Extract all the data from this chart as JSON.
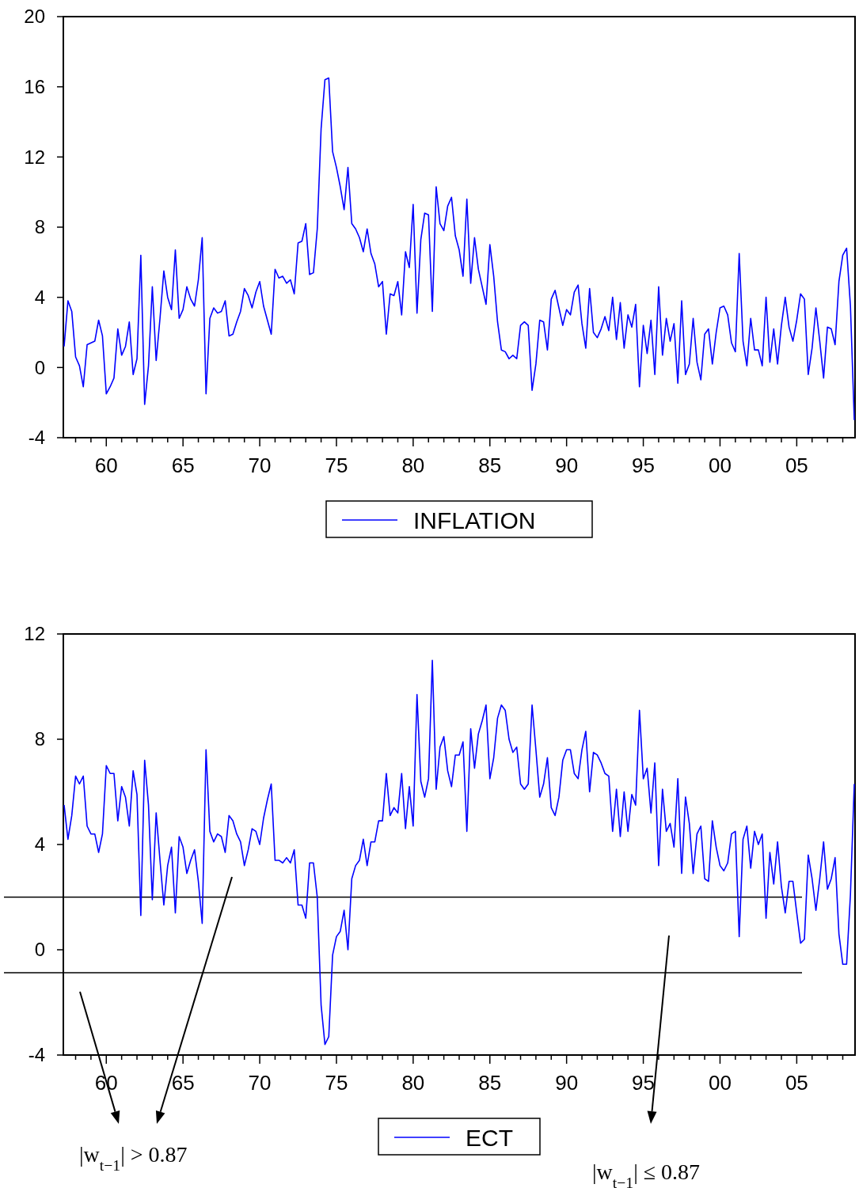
{
  "chart_data": [
    {
      "type": "line",
      "legend": "bottom",
      "xlim": [
        1957.2,
        2008.8
      ],
      "ylim": [
        -4,
        20
      ],
      "yticks": [
        -4,
        0,
        4,
        8,
        12,
        16,
        20
      ],
      "xticks": [
        {
          "value": 1958,
          "label": null
        },
        {
          "value": 1959,
          "label": null
        },
        {
          "value": 1960,
          "label": "60"
        },
        {
          "value": 1961,
          "label": null
        },
        {
          "value": 1962,
          "label": null
        },
        {
          "value": 1963,
          "label": null
        },
        {
          "value": 1964,
          "label": null
        },
        {
          "value": 1965,
          "label": "65"
        },
        {
          "value": 1966,
          "label": null
        },
        {
          "value": 1967,
          "label": null
        },
        {
          "value": 1968,
          "label": null
        },
        {
          "value": 1969,
          "label": null
        },
        {
          "value": 1970,
          "label": "70"
        },
        {
          "value": 1971,
          "label": null
        },
        {
          "value": 1972,
          "label": null
        },
        {
          "value": 1973,
          "label": null
        },
        {
          "value": 1974,
          "label": null
        },
        {
          "value": 1975,
          "label": "75"
        },
        {
          "value": 1976,
          "label": null
        },
        {
          "value": 1977,
          "label": null
        },
        {
          "value": 1978,
          "label": null
        },
        {
          "value": 1979,
          "label": null
        },
        {
          "value": 1980,
          "label": "80"
        },
        {
          "value": 1981,
          "label": null
        },
        {
          "value": 1982,
          "label": null
        },
        {
          "value": 1983,
          "label": null
        },
        {
          "value": 1984,
          "label": null
        },
        {
          "value": 1985,
          "label": "85"
        },
        {
          "value": 1986,
          "label": null
        },
        {
          "value": 1987,
          "label": null
        },
        {
          "value": 1988,
          "label": null
        },
        {
          "value": 1989,
          "label": null
        },
        {
          "value": 1990,
          "label": "90"
        },
        {
          "value": 1991,
          "label": null
        },
        {
          "value": 1992,
          "label": null
        },
        {
          "value": 1993,
          "label": null
        },
        {
          "value": 1994,
          "label": null
        },
        {
          "value": 1995,
          "label": "95"
        },
        {
          "value": 1996,
          "label": null
        },
        {
          "value": 1997,
          "label": null
        },
        {
          "value": 1998,
          "label": null
        },
        {
          "value": 1999,
          "label": null
        },
        {
          "value": 2000,
          "label": "00"
        },
        {
          "value": 2001,
          "label": null
        },
        {
          "value": 2002,
          "label": null
        },
        {
          "value": 2003,
          "label": null
        },
        {
          "value": 2004,
          "label": null
        },
        {
          "value": 2005,
          "label": "05"
        },
        {
          "value": 2006,
          "label": null
        },
        {
          "value": 2007,
          "label": null
        },
        {
          "value": 2008,
          "label": null
        }
      ],
      "x": [
        1957.25,
        1957.5,
        1957.75,
        1958,
        1958.25,
        1958.5,
        1958.75,
        1959,
        1959.25,
        1959.5,
        1959.75,
        1960,
        1960.25,
        1960.5,
        1960.75,
        1961,
        1961.25,
        1961.5,
        1961.75,
        1962,
        1962.25,
        1962.5,
        1962.75,
        1963,
        1963.25,
        1963.5,
        1963.75,
        1964,
        1964.25,
        1964.5,
        1964.75,
        1965,
        1965.25,
        1965.5,
        1965.75,
        1966,
        1966.25,
        1966.5,
        1966.75,
        1967,
        1967.25,
        1967.5,
        1967.75,
        1968,
        1968.25,
        1968.5,
        1968.75,
        1969,
        1969.25,
        1969.5,
        1969.75,
        1970,
        1970.25,
        1970.5,
        1970.75,
        1971,
        1971.25,
        1971.5,
        1971.75,
        1972,
        1972.25,
        1972.5,
        1972.75,
        1973,
        1973.25,
        1973.5,
        1973.75,
        1974,
        1974.25,
        1974.5,
        1974.75,
        1975,
        1975.25,
        1975.5,
        1975.75,
        1976,
        1976.25,
        1976.5,
        1976.75,
        1977,
        1977.25,
        1977.5,
        1977.75,
        1978,
        1978.25,
        1978.5,
        1978.75,
        1979,
        1979.25,
        1979.5,
        1979.75,
        1980,
        1980.25,
        1980.5,
        1980.75,
        1981,
        1981.25,
        1981.5,
        1981.75,
        1982,
        1982.25,
        1982.5,
        1982.75,
        1983,
        1983.25,
        1983.5,
        1983.75,
        1984,
        1984.25,
        1984.5,
        1984.75,
        1985,
        1985.25,
        1985.5,
        1985.75,
        1986,
        1986.25,
        1986.5,
        1986.75,
        1987,
        1987.25,
        1987.5,
        1987.75,
        1988,
        1988.25,
        1988.5,
        1988.75,
        1989,
        1989.25,
        1989.5,
        1989.75,
        1990,
        1990.25,
        1990.5,
        1990.75,
        1991,
        1991.25,
        1991.5,
        1991.75,
        1992,
        1992.25,
        1992.5,
        1992.75,
        1993,
        1993.25,
        1993.5,
        1993.75,
        1994,
        1994.25,
        1994.5,
        1994.75,
        1995,
        1995.25,
        1995.5,
        1995.75,
        1996,
        1996.25,
        1996.5,
        1996.75,
        1997,
        1997.25,
        1997.5,
        1997.75,
        1998,
        1998.25,
        1998.5,
        1998.75,
        1999,
        1999.25,
        1999.5,
        1999.75,
        2000,
        2000.25,
        2000.5,
        2000.75,
        2001,
        2001.25,
        2001.5,
        2001.75,
        2002,
        2002.25,
        2002.5,
        2002.75,
        2003,
        2003.25,
        2003.5,
        2003.75,
        2004,
        2004.25,
        2004.5,
        2004.75,
        2005,
        2005.25,
        2005.5,
        2005.75,
        2006,
        2006.25,
        2006.5,
        2006.75,
        2007,
        2007.25,
        2007.5,
        2007.75,
        2008,
        2008.25,
        2008.5,
        2008.75
      ],
      "series": [
        {
          "name": "INFLATION",
          "color": "#0000ff",
          "values": [
            1.2,
            3.8,
            3.2,
            0.6,
            0.1,
            -1.1,
            1.3,
            1.4,
            1.5,
            2.7,
            1.8,
            -1.5,
            -1.1,
            -0.6,
            2.2,
            0.7,
            1.2,
            2.6,
            -0.4,
            0.5,
            6.4,
            -2.1,
            0.1,
            4.6,
            0.4,
            2.8,
            5.5,
            4.0,
            3.3,
            6.7,
            2.8,
            3.3,
            4.6,
            3.9,
            3.5,
            5.0,
            7.4,
            -1.5,
            2.8,
            3.4,
            3.1,
            3.2,
            3.8,
            1.8,
            1.9,
            2.6,
            3.2,
            4.5,
            4.1,
            3.4,
            4.3,
            4.9,
            3.5,
            2.7,
            1.9,
            5.6,
            5.1,
            5.2,
            4.8,
            5.0,
            4.2,
            7.1,
            7.2,
            8.2,
            5.3,
            5.4,
            7.9,
            13.6,
            16.4,
            16.5,
            12.3,
            11.4,
            10.3,
            9.0,
            11.4,
            8.2,
            7.9,
            7.4,
            6.6,
            7.9,
            6.5,
            5.9,
            4.6,
            4.9,
            1.9,
            4.2,
            4.1,
            4.9,
            3.0,
            6.6,
            5.7,
            9.3,
            3.1,
            7.3,
            8.8,
            8.7,
            3.2,
            10.3,
            8.2,
            7.8,
            9.2,
            9.7,
            7.5,
            6.7,
            5.2,
            9.6,
            4.8,
            7.4,
            5.6,
            4.6,
            3.6,
            7.0,
            5.2,
            2.6,
            1.0,
            0.9,
            0.5,
            0.7,
            0.5,
            2.4,
            2.6,
            2.4,
            -1.3,
            0.2,
            2.7,
            2.6,
            1.0,
            3.9,
            4.4,
            3.4,
            2.4,
            3.3,
            3.0,
            4.3,
            4.7,
            2.5,
            1.1,
            4.5,
            2.0,
            1.7,
            2.2,
            2.9,
            2.1,
            4.0,
            1.6,
            3.7,
            1.1,
            3.0,
            2.3,
            3.6,
            -1.1,
            2.4,
            0.8,
            2.7,
            -0.4,
            4.6,
            0.7,
            2.8,
            1.5,
            2.5,
            -0.9,
            3.8,
            -0.4,
            0.2,
            2.8,
            0.3,
            -0.7,
            1.9,
            2.2,
            0.2,
            2.0,
            3.4,
            3.5,
            3.0,
            1.4,
            0.9,
            6.5,
            1.5,
            0.1,
            2.8,
            1.0,
            1.0,
            0.1,
            4.0,
            0.3,
            2.2,
            0.2,
            2.4,
            4.0,
            2.3,
            1.5,
            2.7,
            4.2,
            3.9,
            -0.4,
            1.1,
            3.4,
            1.5,
            -0.6,
            2.3,
            2.2,
            1.3,
            4.9,
            6.4,
            6.8,
            3.5,
            -3.0
          ]
        }
      ]
    },
    {
      "type": "line",
      "legend": "bottom",
      "xlim": [
        1957.2,
        2008.8
      ],
      "ylim": [
        -4,
        12
      ],
      "yticks": [
        -4,
        0,
        4,
        8,
        12
      ],
      "xticks": [
        {
          "value": 1958,
          "label": null
        },
        {
          "value": 1959,
          "label": null
        },
        {
          "value": 1960,
          "label": "60"
        },
        {
          "value": 1961,
          "label": null
        },
        {
          "value": 1962,
          "label": null
        },
        {
          "value": 1963,
          "label": null
        },
        {
          "value": 1964,
          "label": null
        },
        {
          "value": 1965,
          "label": "65"
        },
        {
          "value": 1966,
          "label": null
        },
        {
          "value": 1967,
          "label": null
        },
        {
          "value": 1968,
          "label": null
        },
        {
          "value": 1969,
          "label": null
        },
        {
          "value": 1970,
          "label": "70"
        },
        {
          "value": 1971,
          "label": null
        },
        {
          "value": 1972,
          "label": null
        },
        {
          "value": 1973,
          "label": null
        },
        {
          "value": 1974,
          "label": null
        },
        {
          "value": 1975,
          "label": "75"
        },
        {
          "value": 1976,
          "label": null
        },
        {
          "value": 1977,
          "label": null
        },
        {
          "value": 1978,
          "label": null
        },
        {
          "value": 1979,
          "label": null
        },
        {
          "value": 1980,
          "label": "80"
        },
        {
          "value": 1981,
          "label": null
        },
        {
          "value": 1982,
          "label": null
        },
        {
          "value": 1983,
          "label": null
        },
        {
          "value": 1984,
          "label": null
        },
        {
          "value": 1985,
          "label": "85"
        },
        {
          "value": 1986,
          "label": null
        },
        {
          "value": 1987,
          "label": null
        },
        {
          "value": 1988,
          "label": null
        },
        {
          "value": 1989,
          "label": null
        },
        {
          "value": 1990,
          "label": "90"
        },
        {
          "value": 1991,
          "label": null
        },
        {
          "value": 1992,
          "label": null
        },
        {
          "value": 1993,
          "label": null
        },
        {
          "value": 1994,
          "label": null
        },
        {
          "value": 1995,
          "label": "95"
        },
        {
          "value": 1996,
          "label": null
        },
        {
          "value": 1997,
          "label": null
        },
        {
          "value": 1998,
          "label": null
        },
        {
          "value": 1999,
          "label": null
        },
        {
          "value": 2000,
          "label": "00"
        },
        {
          "value": 2001,
          "label": null
        },
        {
          "value": 2002,
          "label": null
        },
        {
          "value": 2003,
          "label": null
        },
        {
          "value": 2004,
          "label": null
        },
        {
          "value": 2005,
          "label": "05"
        },
        {
          "value": 2006,
          "label": null
        },
        {
          "value": 2007,
          "label": null
        },
        {
          "value": 2008,
          "label": null
        }
      ],
      "x": [
        1957.25,
        1957.5,
        1957.75,
        1958,
        1958.25,
        1958.5,
        1958.75,
        1959,
        1959.25,
        1959.5,
        1959.75,
        1960,
        1960.25,
        1960.5,
        1960.75,
        1961,
        1961.25,
        1961.5,
        1961.75,
        1962,
        1962.25,
        1962.5,
        1962.75,
        1963,
        1963.25,
        1963.5,
        1963.75,
        1964,
        1964.25,
        1964.5,
        1964.75,
        1965,
        1965.25,
        1965.5,
        1965.75,
        1966,
        1966.25,
        1966.5,
        1966.75,
        1967,
        1967.25,
        1967.5,
        1967.75,
        1968,
        1968.25,
        1968.5,
        1968.75,
        1969,
        1969.25,
        1969.5,
        1969.75,
        1970,
        1970.25,
        1970.5,
        1970.75,
        1971,
        1971.25,
        1971.5,
        1971.75,
        1972,
        1972.25,
        1972.5,
        1972.75,
        1973,
        1973.25,
        1973.5,
        1973.75,
        1974,
        1974.25,
        1974.5,
        1974.75,
        1975,
        1975.25,
        1975.5,
        1975.75,
        1976,
        1976.25,
        1976.5,
        1976.75,
        1977,
        1977.25,
        1977.5,
        1977.75,
        1978,
        1978.25,
        1978.5,
        1978.75,
        1979,
        1979.25,
        1979.5,
        1979.75,
        1980,
        1980.25,
        1980.5,
        1980.75,
        1981,
        1981.25,
        1981.5,
        1981.75,
        1982,
        1982.25,
        1982.5,
        1982.75,
        1983,
        1983.25,
        1983.5,
        1983.75,
        1984,
        1984.25,
        1984.5,
        1984.75,
        1985,
        1985.25,
        1985.5,
        1985.75,
        1986,
        1986.25,
        1986.5,
        1986.75,
        1987,
        1987.25,
        1987.5,
        1987.75,
        1988,
        1988.25,
        1988.5,
        1988.75,
        1989,
        1989.25,
        1989.5,
        1989.75,
        1990,
        1990.25,
        1990.5,
        1990.75,
        1991,
        1991.25,
        1991.5,
        1991.75,
        1992,
        1992.25,
        1992.5,
        1992.75,
        1993,
        1993.25,
        1993.5,
        1993.75,
        1994,
        1994.25,
        1994.5,
        1994.75,
        1995,
        1995.25,
        1995.5,
        1995.75,
        1996,
        1996.25,
        1996.5,
        1996.75,
        1997,
        1997.25,
        1997.5,
        1997.75,
        1998,
        1998.25,
        1998.5,
        1998.75,
        1999,
        1999.25,
        1999.5,
        1999.75,
        2000,
        2000.25,
        2000.5,
        2000.75,
        2001,
        2001.25,
        2001.5,
        2001.75,
        2002,
        2002.25,
        2002.5,
        2002.75,
        2003,
        2003.25,
        2003.5,
        2003.75,
        2004,
        2004.25,
        2004.5,
        2004.75,
        2005,
        2005.25,
        2005.5,
        2005.75,
        2006,
        2006.25,
        2006.5,
        2006.75,
        2007,
        2007.25,
        2007.5,
        2007.75,
        2008,
        2008.25,
        2008.5,
        2008.75
      ],
      "series": [
        {
          "name": "ECT",
          "color": "#0000ff",
          "values": [
            5.5,
            4.2,
            5.1,
            6.6,
            6.3,
            6.6,
            4.7,
            4.4,
            4.4,
            3.7,
            4.4,
            7.0,
            6.7,
            6.7,
            4.9,
            6.2,
            5.8,
            4.7,
            6.8,
            5.9,
            1.3,
            7.2,
            5.5,
            1.9,
            5.2,
            3.4,
            1.7,
            3.2,
            3.9,
            1.4,
            4.3,
            3.9,
            2.9,
            3.4,
            3.8,
            2.6,
            1.0,
            7.6,
            4.5,
            4.1,
            4.4,
            4.3,
            3.7,
            5.1,
            4.9,
            4.4,
            4.1,
            3.2,
            3.8,
            4.6,
            4.5,
            4.0,
            5.0,
            5.7,
            6.3,
            3.4,
            3.4,
            3.3,
            3.5,
            3.3,
            3.8,
            1.7,
            1.7,
            1.2,
            3.3,
            3.3,
            2.0,
            -2.1,
            -3.6,
            -3.3,
            -0.2,
            0.5,
            0.7,
            1.5,
            0.0,
            2.7,
            3.2,
            3.4,
            4.2,
            3.2,
            4.1,
            4.1,
            4.9,
            4.9,
            6.7,
            5.1,
            5.4,
            5.2,
            6.7,
            4.6,
            6.2,
            4.7,
            9.7,
            6.4,
            5.8,
            6.5,
            11.0,
            6.1,
            7.7,
            8.1,
            6.8,
            6.2,
            7.4,
            7.4,
            7.9,
            4.5,
            8.4,
            6.9,
            8.2,
            8.7,
            9.3,
            6.5,
            7.3,
            8.8,
            9.3,
            9.1,
            8.0,
            7.5,
            7.7,
            6.3,
            6.1,
            6.3,
            9.3,
            7.6,
            5.8,
            6.3,
            7.3,
            5.4,
            5.1,
            5.8,
            7.2,
            7.6,
            7.6,
            6.7,
            6.5,
            7.6,
            8.3,
            6.0,
            7.5,
            7.4,
            7.1,
            6.7,
            6.6,
            4.5,
            6.1,
            4.3,
            6.0,
            4.5,
            5.9,
            5.5,
            9.1,
            6.5,
            6.9,
            5.2,
            7.1,
            3.2,
            6.1,
            4.5,
            4.8,
            3.9,
            6.5,
            2.9,
            5.8,
            4.8,
            2.9,
            4.4,
            4.7,
            2.7,
            2.6,
            4.9,
            3.9,
            3.2,
            3.0,
            3.3,
            4.4,
            4.5,
            0.5,
            4.2,
            4.7,
            3.1,
            4.5,
            4.0,
            4.4,
            1.2,
            3.7,
            2.5,
            4.1,
            2.4,
            1.4,
            2.6,
            2.6,
            1.4,
            0.25,
            0.4,
            3.6,
            2.7,
            1.5,
            2.7,
            4.1,
            2.3,
            2.7,
            3.5,
            0.6,
            -0.55,
            -0.55,
            2.1,
            6.3
          ]
        }
      ],
      "ref_lines": [
        {
          "axis": "y",
          "value": 2.0,
          "color": "#000000"
        },
        {
          "axis": "y",
          "value": -0.87,
          "color": "#000000"
        }
      ],
      "annotations": [
        "|w$_{t−1}$| > 0.87",
        "|w$_{t−1}$| ≤ 0.87"
      ]
    }
  ]
}
